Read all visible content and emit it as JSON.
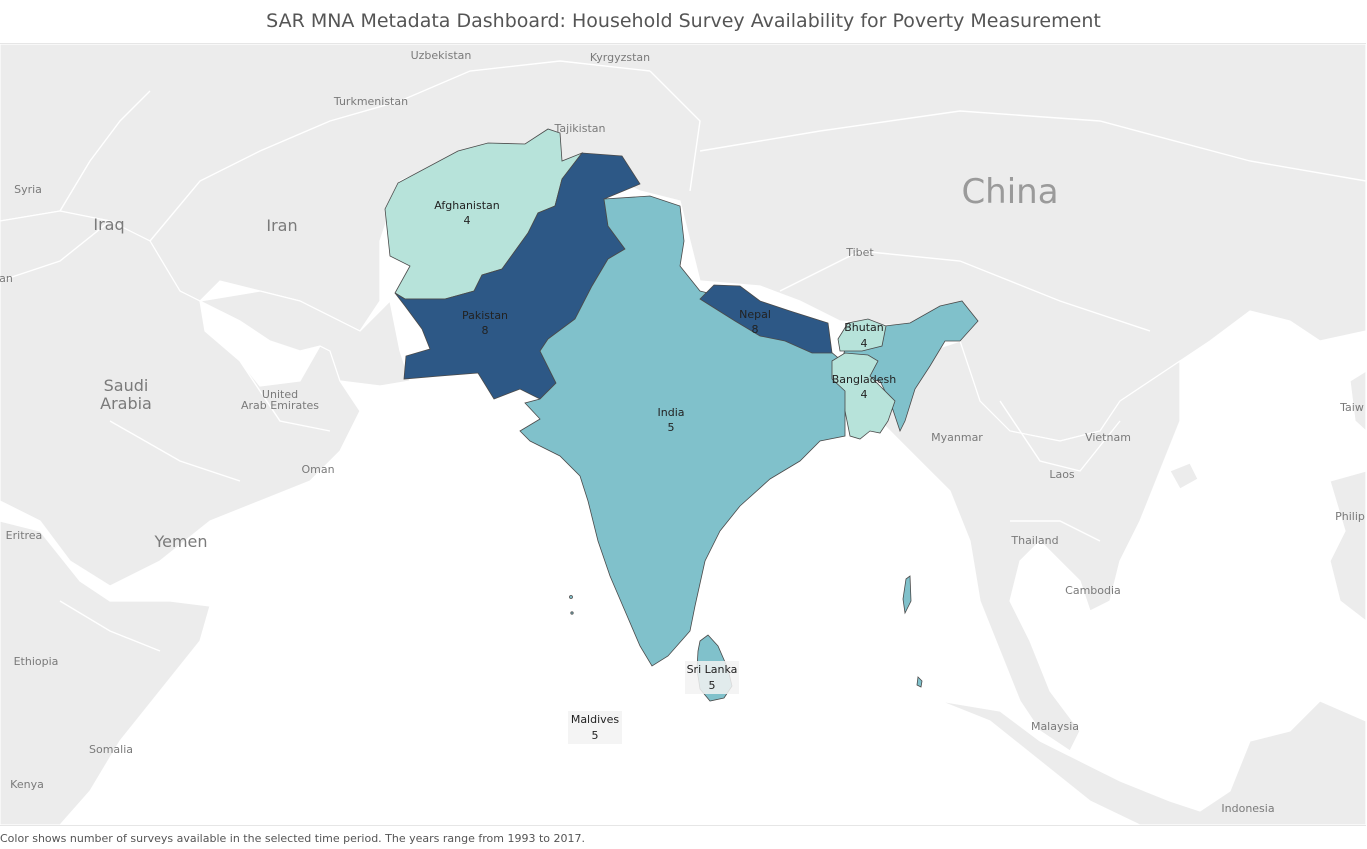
{
  "title": "SAR MNA Metadata Dashboard: Household Survey Availability for Poverty Measurement",
  "footnote": "Color shows number of surveys available in the selected time period. The years range from 1993 to 2017.",
  "colors": {
    "ocean": "#ffffff",
    "land": "#ececec",
    "border": "#ffffff",
    "scale_4": "#b7e3da",
    "scale_5": "#80c1cb",
    "scale_8": "#2d5886"
  },
  "chart_data": {
    "type": "map",
    "metric": "number of surveys available",
    "year_range": [
      1993,
      2017
    ],
    "countries": [
      {
        "name": "Afghanistan",
        "value": "4"
      },
      {
        "name": "Pakistan",
        "value": "8"
      },
      {
        "name": "India",
        "value": "5"
      },
      {
        "name": "Nepal",
        "value": "8"
      },
      {
        "name": "Bhutan",
        "value": "4"
      },
      {
        "name": "Bangladesh",
        "value": "4"
      },
      {
        "name": "Sri Lanka",
        "value": "5"
      },
      {
        "name": "Maldives",
        "value": "5"
      }
    ]
  },
  "basemap_labels": {
    "uzbekistan": "Uzbekistan",
    "kyrgyzstan": "Kyrgyzstan",
    "turkmenistan": "Turkmenistan",
    "tajikistan": "Tajikistan",
    "china": "China",
    "tibet": "Tibet",
    "syria": "Syria",
    "iraq": "Iraq",
    "iran": "Iran",
    "saudi_line1": "Saudi",
    "saudi_line2": "Arabia",
    "uae_line1": "United",
    "uae_line2": "Arab Emirates",
    "oman": "Oman",
    "yemen": "Yemen",
    "eritrea": "Eritrea",
    "ethiopia": "Ethiopia",
    "somalia": "Somalia",
    "kenya": "Kenya",
    "myanmar": "Myanmar",
    "vietnam": "Vietnam",
    "laos": "Laos",
    "thailand": "Thailand",
    "cambodia": "Cambodia",
    "malaysia": "Malaysia",
    "indonesia": "Indonesia",
    "philippines_partial": "Philip",
    "taiwan_partial": "Taiw",
    "partial_left": "an"
  }
}
